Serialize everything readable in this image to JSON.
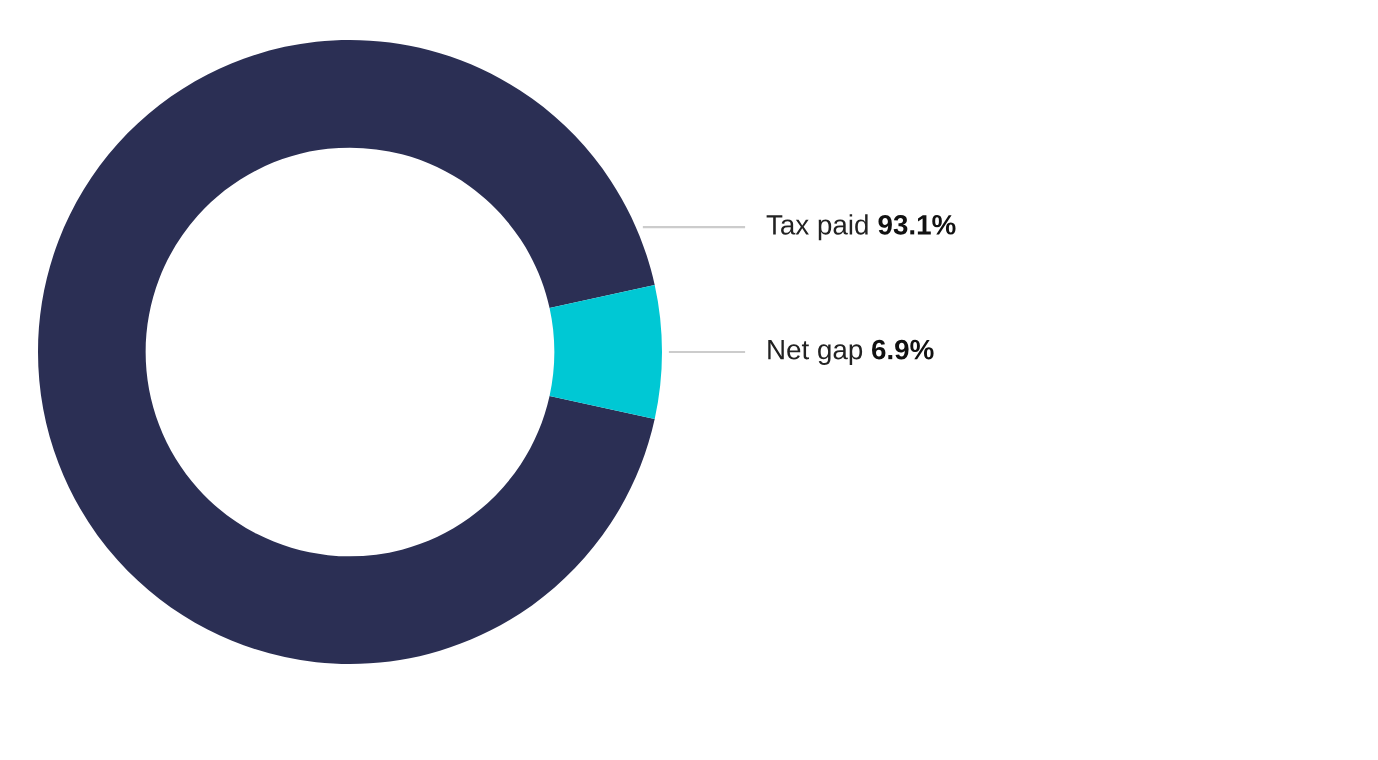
{
  "chart_data": {
    "type": "donut",
    "categories": [
      "Tax paid",
      "Net gap"
    ],
    "values": [
      93.1,
      6.9
    ],
    "colors": [
      "#2b2f54",
      "#00c8d4"
    ],
    "value_labels": [
      "93.1%",
      "6.9%"
    ],
    "legend": false
  }
}
